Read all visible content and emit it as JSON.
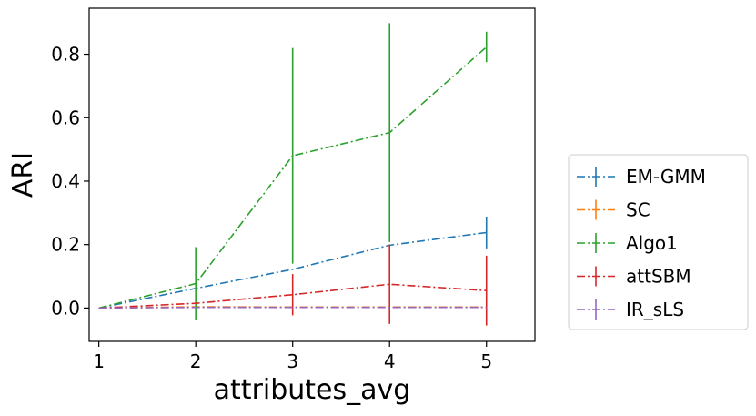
{
  "chart_data": {
    "type": "line",
    "xlabel": "attributes_avg",
    "ylabel": "ARI",
    "x": [
      1,
      2,
      3,
      4,
      5
    ],
    "xlim": [
      0.9,
      5.5
    ],
    "ylim": [
      -0.105,
      0.945
    ],
    "xticks": [
      1,
      2,
      3,
      4,
      5
    ],
    "yticks": [
      0.0,
      0.2,
      0.4,
      0.6,
      0.8
    ],
    "ytick_labels": [
      "0.0",
      "0.2",
      "0.4",
      "0.6",
      "0.8"
    ],
    "grid": false,
    "legend_position": "outside-right",
    "line_style": "dash-dot",
    "series": [
      {
        "name": "EM-GMM",
        "color": "#1f77b4",
        "values": [
          0.0,
          0.062,
          0.122,
          0.198,
          0.238
        ],
        "errors": [
          0.0,
          0.0,
          0.0,
          0.0,
          0.05
        ]
      },
      {
        "name": "SC",
        "color": "#ff7f0e",
        "values": [
          0.0,
          0.004,
          0.003,
          0.003,
          0.003
        ],
        "errors": [
          0.0,
          0.0,
          0.0,
          0.0,
          0.0
        ]
      },
      {
        "name": "Algo1",
        "color": "#2ca02c",
        "values": [
          0.0,
          0.077,
          0.48,
          0.553,
          0.823
        ],
        "errors": [
          0.0,
          0.115,
          0.34,
          0.345,
          0.048
        ]
      },
      {
        "name": "attSBM",
        "color": "#d62728",
        "values": [
          0.0,
          0.015,
          0.042,
          0.075,
          0.055
        ],
        "errors": [
          0.0,
          0.0,
          0.065,
          0.125,
          0.11
        ]
      },
      {
        "name": "IR_sLS",
        "color": "#9467bd",
        "values": [
          0.0,
          0.002,
          0.002,
          0.002,
          0.002
        ],
        "errors": [
          0.0,
          0.0,
          0.0,
          0.0,
          0.0
        ]
      }
    ]
  }
}
